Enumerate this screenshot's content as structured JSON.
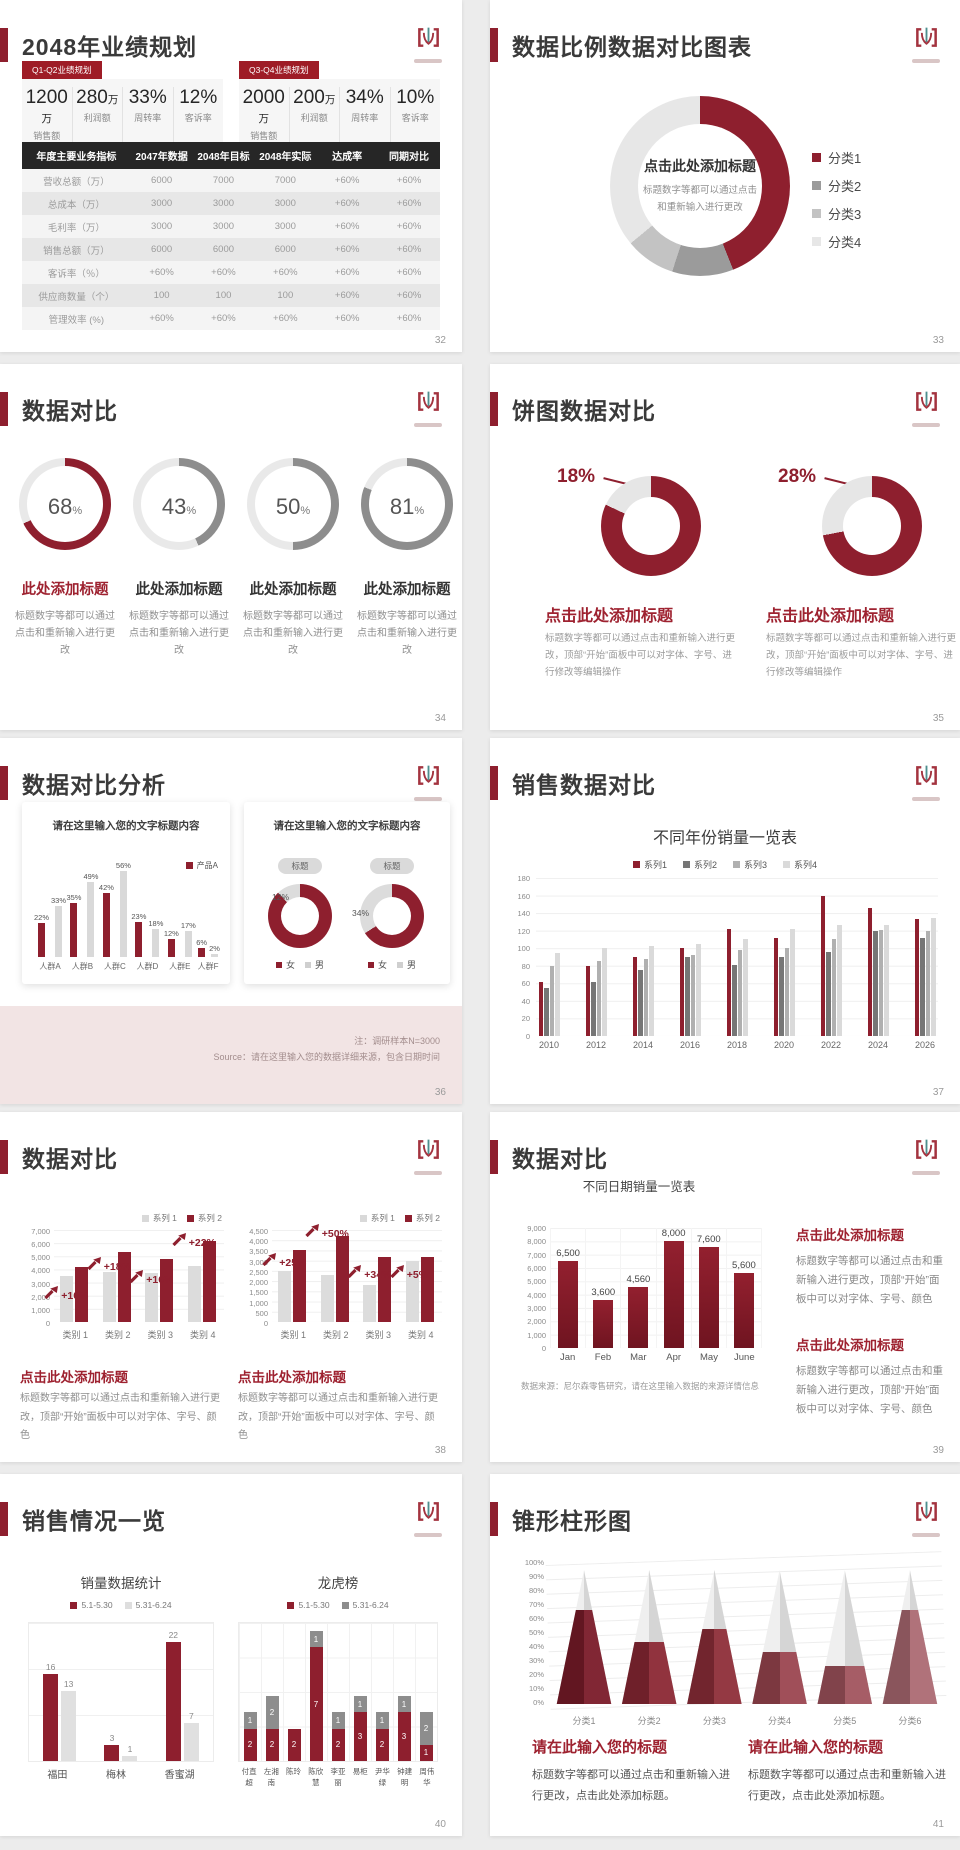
{
  "colors": {
    "accent_red": "#8e1f2e",
    "badge_red": "#9e1c26",
    "title_red": "#9e2230",
    "table_header": "#262626",
    "gray_series": "#8d8d8d",
    "light_gray": "#d9d9d9",
    "track_gray": "#e9e9e9",
    "page_bg": "#ececec"
  },
  "slide32": {
    "title": "2048年业绩规划",
    "page": "32",
    "panels": [
      {
        "badge": "Q1-Q2业绩规划",
        "stats": [
          {
            "num": "1200",
            "unit": "万",
            "label": "销售额"
          },
          {
            "num": "280",
            "unit": "万",
            "label": "利润额"
          },
          {
            "num": "33%",
            "unit": "",
            "label": "周转率"
          },
          {
            "num": "12%",
            "unit": "",
            "label": "客诉率"
          }
        ]
      },
      {
        "badge": "Q3-Q4业绩规划",
        "stats": [
          {
            "num": "2000",
            "unit": "万",
            "label": "销售额"
          },
          {
            "num": "200",
            "unit": "万",
            "label": "利润额"
          },
          {
            "num": "34%",
            "unit": "",
            "label": "周转率"
          },
          {
            "num": "10%",
            "unit": "",
            "label": "客诉率"
          }
        ]
      }
    ],
    "table": {
      "headers": [
        "年度主要业务指标",
        "2047年数据",
        "2048年目标",
        "2048年实际",
        "达成率",
        "同期对比"
      ],
      "rows": [
        [
          "营收总额（万）",
          "6000",
          "7000",
          "7000",
          "+60%",
          "+60%"
        ],
        [
          "总成本（万）",
          "3000",
          "3000",
          "3000",
          "+60%",
          "+60%"
        ],
        [
          "毛利率（万）",
          "3000",
          "3000",
          "3000",
          "+60%",
          "+60%"
        ],
        [
          "销售总额（万）",
          "6000",
          "6000",
          "6000",
          "+60%",
          "+60%"
        ],
        [
          "客诉率（％）",
          "+60%",
          "+60%",
          "+60%",
          "+60%",
          "+60%"
        ],
        [
          "供应商数量（个）",
          "100",
          "100",
          "100",
          "+60%",
          "+60%"
        ],
        [
          "管理效率 (%)",
          "+60%",
          "+60%",
          "+60%",
          "+60%",
          "+60%"
        ]
      ]
    }
  },
  "slide33": {
    "title": "数据比例数据对比图表",
    "page": "33",
    "chart": {
      "type": "pie",
      "center_title": "点击此处添加标题",
      "center_desc": "标题数字等都可以通过点击和重新输入进行更改",
      "segments": [
        {
          "label": "分类1",
          "value": 44,
          "color": "#8e1f2e"
        },
        {
          "label": "分类2",
          "value": 11,
          "color": "#9b9b9b"
        },
        {
          "label": "分类3",
          "value": 9,
          "color": "#c3c3c3"
        },
        {
          "label": "分类4",
          "value": 36,
          "color": "#e7e7e7"
        }
      ]
    }
  },
  "slide34": {
    "title": "数据对比",
    "page": "34",
    "desc": "标题数字等都可以通过点击和重新输入进行更改",
    "items": [
      {
        "value": 68,
        "color": "#8e1f2e",
        "title": "此处添加标题",
        "title_color": "#9e2230"
      },
      {
        "value": 43,
        "color": "#8d8d8d",
        "title": "此处添加标题",
        "title_color": "#333333"
      },
      {
        "value": 50,
        "color": "#8d8d8d",
        "title": "此处添加标题",
        "title_color": "#333333"
      },
      {
        "value": 81,
        "color": "#8d8d8d",
        "title": "此处添加标题",
        "title_color": "#333333"
      }
    ]
  },
  "slide35": {
    "title": "饼图数据对比",
    "page": "35",
    "items": [
      {
        "callout": "18%",
        "red_pct": 82,
        "title": "点击此处添加标题",
        "desc": "标题数字等都可以通过点击和重新输入进行更改，顶部“开始”面板中可以对字体、字号、进行修改等编辑操作"
      },
      {
        "callout": "28%",
        "red_pct": 72,
        "title": "点击此处添加标题",
        "desc": "标题数字等都可以通过点击和重新输入进行更改，顶部“开始”面板中可以对字体、字号、进行修改等编辑操作"
      }
    ]
  },
  "slide36": {
    "title": "数据对比分析",
    "page": "36",
    "card1": {
      "title": "请在这里输入您的文字标题内容",
      "legend": "产品A",
      "ymax": 60,
      "categories": [
        "人群A",
        "人群B",
        "人群C",
        "人群D",
        "人群E",
        "人群F"
      ],
      "red": [
        22,
        35,
        42,
        23,
        12,
        6
      ],
      "gray": [
        33,
        49,
        56,
        18,
        17,
        2
      ]
    },
    "card2": {
      "title": "请在这里输入您的文字标题内容",
      "badge": "标题",
      "donuts": [
        {
          "label": "12%",
          "gray_pct": 12
        },
        {
          "label": "34%",
          "gray_pct": 34
        }
      ],
      "legend_female": "女",
      "legend_male": "男"
    },
    "note1": "注：调研样本N=3000",
    "note2": "Source：请在这里输入您的数据详细来源，包含日期时间"
  },
  "slide37": {
    "title": "销售数据对比",
    "page": "37",
    "chart": {
      "title": "不同年份销量一览表",
      "ymax": 180,
      "ystep": 20,
      "categories": [
        "2010",
        "2012",
        "2014",
        "2016",
        "2018",
        "2020",
        "2022",
        "2024",
        "2026"
      ],
      "series": [
        {
          "name": "系列1",
          "color": "#8e1f2e",
          "values": [
            62,
            80,
            90,
            100,
            122,
            112,
            160,
            146,
            133
          ]
        },
        {
          "name": "系列2",
          "color": "#767676",
          "values": [
            55,
            62,
            75,
            90,
            81,
            90,
            96,
            120,
            112
          ]
        },
        {
          "name": "系列3",
          "color": "#b0b0b0",
          "values": [
            80,
            86,
            88,
            92,
            98,
            100,
            111,
            121,
            120
          ]
        },
        {
          "name": "系列4",
          "color": "#dadada",
          "values": [
            95,
            100,
            103,
            105,
            110,
            122,
            126,
            126,
            134
          ]
        }
      ]
    }
  },
  "slide38": {
    "title": "数据对比",
    "page": "38",
    "charts": [
      {
        "legend1": "系列 1",
        "legend2": "系列 2",
        "ymax": 7000,
        "ystep": 1000,
        "categories": [
          "类别 1",
          "类别 2",
          "类别 3",
          "类别 4"
        ],
        "gray": [
          3500,
          3800,
          3700,
          4300
        ],
        "red": [
          4200,
          5300,
          4800,
          6200
        ],
        "labels": [
          "+10%",
          "+18%",
          "+16%",
          "+22%"
        ],
        "title": "点击此处添加标题",
        "desc": "标题数字等都可以通过点击和重新输入进行更改，顶部“开始”面板中可以对字体、字号、颜色"
      },
      {
        "legend1": "系列 1",
        "legend2": "系列 2",
        "ymax": 4500,
        "ystep": 500,
        "categories": [
          "类别 1",
          "类别 2",
          "类别 3",
          "类别 4"
        ],
        "gray": [
          2500,
          2300,
          1800,
          3000
        ],
        "red": [
          3500,
          4200,
          3200,
          3200
        ],
        "labels": [
          "+25%",
          "+50%",
          "+34%",
          "+5%"
        ],
        "title": "点击此处添加标题",
        "desc": "标题数字等都可以通过点击和重新输入进行更改，顶部“开始”面板中可以对字体、字号、颜色"
      }
    ]
  },
  "slide39": {
    "title": "数据对比",
    "page": "39",
    "chart": {
      "title": "不同日期销量一览表",
      "ymax": 9000,
      "ystep": 1000,
      "categories": [
        "Jan",
        "Feb",
        "Mar",
        "Apr",
        "May",
        "June"
      ],
      "values": [
        6500,
        3600,
        4560,
        8000,
        7600,
        5600
      ],
      "labels": [
        "6,500",
        "3,600",
        "4,560",
        "8,000",
        "7,600",
        "5,600"
      ],
      "source": "数据来源：尼尔森零售研究，请在这里输入数据的来源详情信息"
    },
    "blocks": [
      {
        "title": "点击此处添加标题",
        "desc": "标题数字等都可以通过点击和重新输入进行更改，顶部“开始”面板中可以对字体、字号、颜色"
      },
      {
        "title": "点击此处添加标题",
        "desc": "标题数字等都可以通过点击和重新输入进行更改，顶部“开始”面板中可以对字体、字号、颜色"
      }
    ]
  },
  "slide40": {
    "title": "销售情况一览",
    "page": "40",
    "chart1": {
      "title": "销量数据统计",
      "ymax": 24,
      "legend": [
        {
          "label": "5.1-5.30",
          "color": "#8e1f2e"
        },
        {
          "label": "5.31-6.24",
          "color": "#dedede"
        }
      ],
      "categories": [
        "福田",
        "梅林",
        "香蜜湖"
      ],
      "red": [
        16,
        3,
        22
      ],
      "gray": [
        13,
        1,
        7
      ]
    },
    "chart2": {
      "title": "龙虎榜",
      "ymax": 8,
      "legend": [
        {
          "label": "5.1-5.30",
          "color": "#8e1f2e"
        },
        {
          "label": "5.31-6.24",
          "color": "#8d8d8d"
        }
      ],
      "categories": [
        "付直超",
        "左湘南",
        "陈玲",
        "陈欣慧",
        "李亚丽",
        "易柜",
        "尹华绿",
        "钟建明",
        "周伟华"
      ],
      "red": [
        2,
        2,
        2,
        7,
        2,
        3,
        2,
        3,
        1
      ],
      "gray": [
        1,
        2,
        0,
        1,
        1,
        1,
        1,
        1,
        2
      ]
    }
  },
  "slide41": {
    "title": "锥形柱形图",
    "page": "41",
    "chart": {
      "yticks": [
        "100%",
        "90%",
        "80%",
        "70%",
        "60%",
        "50%",
        "40%",
        "30%",
        "20%",
        "10%",
        "0%"
      ],
      "categories": [
        "分类1",
        "分类2",
        "分类3",
        "分类4",
        "分类5",
        "分类6"
      ],
      "values": [
        70,
        46,
        56,
        39,
        28,
        70
      ],
      "colors": [
        "#7a1b29",
        "#8b2834",
        "#8e2e39",
        "#9b4650",
        "#a1545e",
        "#ac6a73"
      ]
    },
    "blocks": [
      {
        "title": "请在此输入您的标题",
        "desc": "标题数字等都可以通过点击和重新输入进行更改，点击此处添加标题。"
      },
      {
        "title": "请在此输入您的标题",
        "desc": "标题数字等都可以通过点击和重新输入进行更改，点击此处添加标题。"
      }
    ]
  }
}
